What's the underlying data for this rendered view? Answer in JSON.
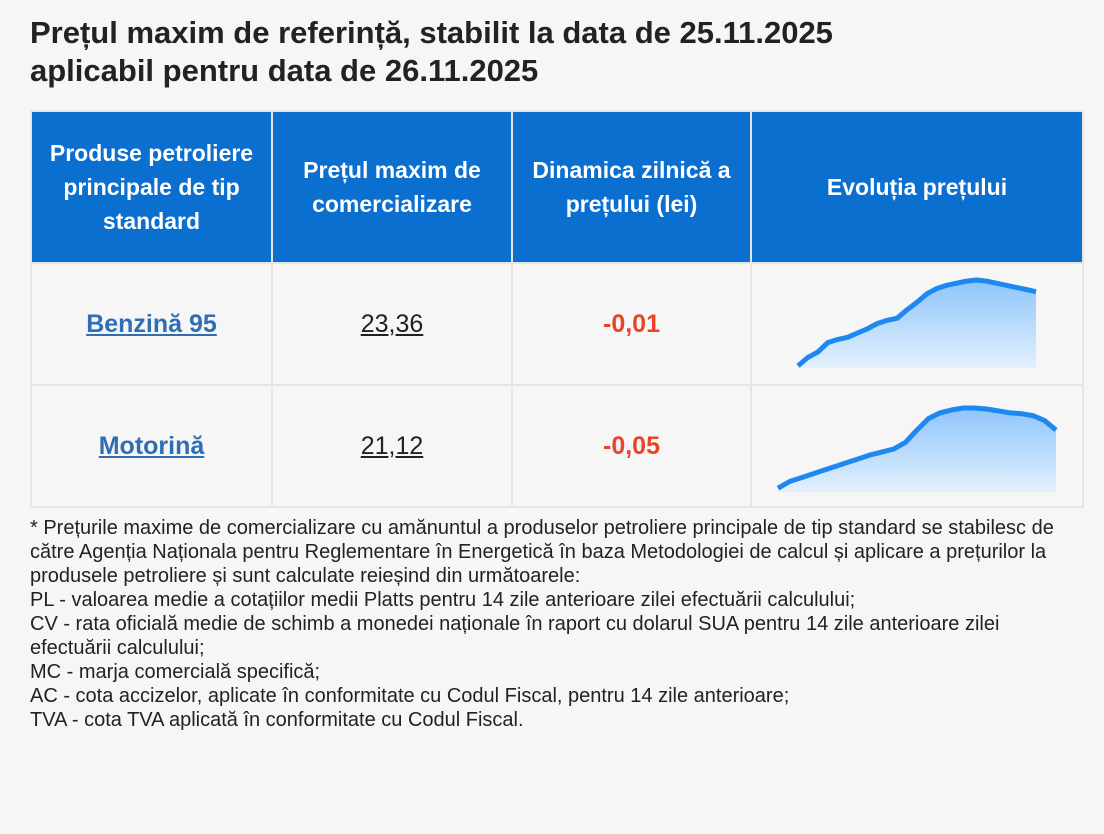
{
  "header": {
    "title_line1": "Prețul maxim de referință, stabilit la data de 25.11.2025",
    "title_line2": "aplicabil pentru data de 26.11.2025"
  },
  "table": {
    "columns": [
      "Produse petroliere principale de tip standard",
      "Prețul maxim de comercializare",
      "Dinamica zilnică a prețului (lei)",
      "Evoluția prețului"
    ],
    "rows": [
      {
        "product": "Benzină 95",
        "price": "23,36",
        "change": "-0,01",
        "trend": [
          2,
          10,
          15,
          24,
          27,
          29,
          33,
          37,
          42,
          45,
          47,
          55,
          62,
          70,
          75,
          78,
          80,
          82,
          83,
          82,
          80,
          78,
          76,
          74,
          72
        ]
      },
      {
        "product": "Motorină",
        "price": "21,12",
        "change": "-0,05",
        "trend": [
          4,
          11,
          15,
          19,
          23,
          27,
          31,
          35,
          39,
          42,
          45,
          52,
          65,
          77,
          83,
          86,
          88,
          88,
          87,
          85,
          83,
          82,
          80,
          75,
          65
        ]
      }
    ]
  },
  "footnote": {
    "intro": "* Prețurile maxime de comercializare cu amănuntul a produselor petroliere principale de tip standard se stabilesc de către Agenția Naționala pentru Reglementare în Energetică în baza Metodologiei de calcul și aplicare a prețurilor la produsele petroliere și sunt calculate reieșind din următoarele:",
    "items": [
      "PL - valoarea medie a cotațiilor medii Platts pentru 14 zile anterioare zilei efectuării calculului;",
      "CV - rata oficială medie de schimb a monedei naționale în raport cu dolarul SUA pentru 14 zile anterioare zilei efectuării calculului;",
      "MC - marja comercială specifică;",
      "AC - cota accizelor, aplicate în conformitate cu Codul Fiscal, pentru 14 zile anterioare;",
      "TVA - cota TVA aplicată în conformitate cu Codul Fiscal."
    ]
  }
}
